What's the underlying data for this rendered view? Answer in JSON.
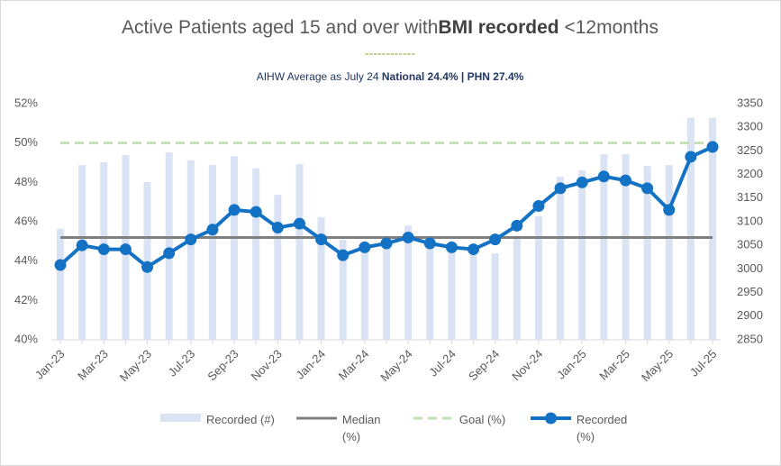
{
  "chart_data": {
    "type": "combo",
    "title_parts": [
      "Active Patients aged 15 and over with",
      "BMI recorded",
      " <12months"
    ],
    "title_rule": "------------",
    "subtitle_parts": [
      "AIHW Average as July 24 ",
      "National 24.4% | PHN 27.4%"
    ],
    "categories": [
      "Jan-23",
      null,
      "Mar-23",
      null,
      "May-23",
      null,
      "Jul-23",
      null,
      "Sep-23",
      null,
      "Nov-23",
      null,
      "Jan-24",
      null,
      "Mar-24",
      null,
      "May-24",
      null,
      "Jul-24",
      null,
      "Sep-24",
      null,
      "Nov-24",
      null,
      "Jan-25",
      null,
      "Mar-25",
      null,
      "May-25",
      null,
      "Jul-25"
    ],
    "ylim": [
      40,
      52
    ],
    "yticks": [
      {
        "value": 40,
        "label": "40%"
      },
      {
        "value": 42,
        "label": "42%"
      },
      {
        "value": 44,
        "label": "44%"
      },
      {
        "value": 46,
        "label": "46%"
      },
      {
        "value": 48,
        "label": "48%"
      },
      {
        "value": 50,
        "label": "50%"
      },
      {
        "value": 52,
        "label": "52%"
      }
    ],
    "y2lim": [
      2850,
      3350
    ],
    "y2ticks": [
      2850,
      2900,
      2950,
      3000,
      3050,
      3100,
      3150,
      3200,
      3250,
      3300,
      3350
    ],
    "grid": false,
    "legend": "bottom",
    "series": [
      {
        "name": "Recorded (#)",
        "type": "bar",
        "axis": "y2",
        "color": "#dae3f3",
        "values": [
          3085,
          3220,
          3226,
          3241,
          3184,
          3247,
          3230,
          3220,
          3239,
          3213,
          3157,
          3222,
          3110,
          3062,
          3035,
          3045,
          3092,
          3054,
          3045,
          3030,
          3033,
          3070,
          3111,
          3195,
          3209,
          3243,
          3243,
          3218,
          3220,
          3320,
          3320
        ]
      },
      {
        "name": "Median (%)",
        "type": "hline",
        "color": "#7f7f7f",
        "dashed": false,
        "value": 45.2
      },
      {
        "name": "Goal (%)",
        "type": "hline",
        "color": "#c5dfb4",
        "dashed": true,
        "value": 50
      },
      {
        "name": "Recorded (%)",
        "type": "line",
        "color": "#1472c4",
        "values": [
          43.8,
          44.8,
          44.6,
          44.6,
          43.7,
          44.4,
          45.1,
          45.6,
          46.6,
          46.5,
          45.7,
          45.9,
          45.1,
          44.3,
          44.7,
          44.9,
          45.2,
          44.9,
          44.7,
          44.6,
          45.1,
          45.8,
          46.8,
          47.7,
          48.0,
          48.3,
          48.1,
          47.7,
          46.6,
          49.3,
          49.8
        ]
      }
    ]
  }
}
